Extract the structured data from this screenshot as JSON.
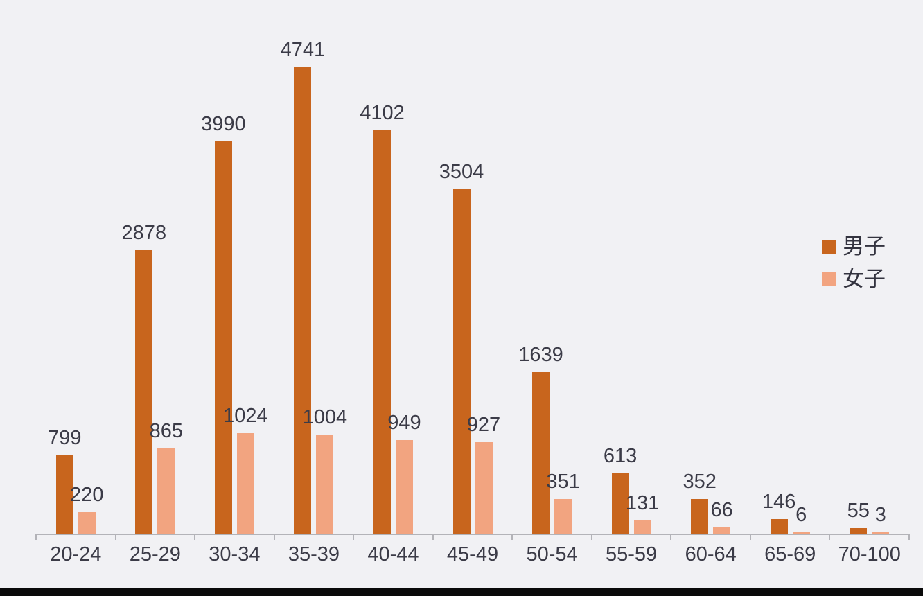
{
  "chart_data": {
    "type": "bar",
    "title": "",
    "xlabel": "",
    "ylabel": "",
    "categories": [
      "20-24",
      "25-29",
      "30-34",
      "35-39",
      "40-44",
      "45-49",
      "50-54",
      "55-59",
      "60-64",
      "65-69",
      "70-100"
    ],
    "series": [
      {
        "name": "男子",
        "color": "#c8651d",
        "values": [
          799,
          2878,
          3990,
          4741,
          4102,
          3504,
          1639,
          613,
          352,
          146,
          55
        ]
      },
      {
        "name": "女子",
        "color": "#f2a480",
        "values": [
          220,
          865,
          1024,
          1004,
          949,
          927,
          351,
          131,
          66,
          6,
          3
        ]
      }
    ],
    "ylim": [
      0,
      4741
    ],
    "grid": false,
    "legend_position": "right",
    "data_labels": true
  },
  "colors": {
    "background": "#f1f1f4",
    "male_bar": "#c8651d",
    "female_bar": "#f2a480",
    "label_text": "#3b3b47",
    "axis": "#b3b3b8",
    "bottom_strip": "#0a0a0a"
  },
  "legend": {
    "items": [
      {
        "label": "男子"
      },
      {
        "label": "女子"
      }
    ]
  }
}
